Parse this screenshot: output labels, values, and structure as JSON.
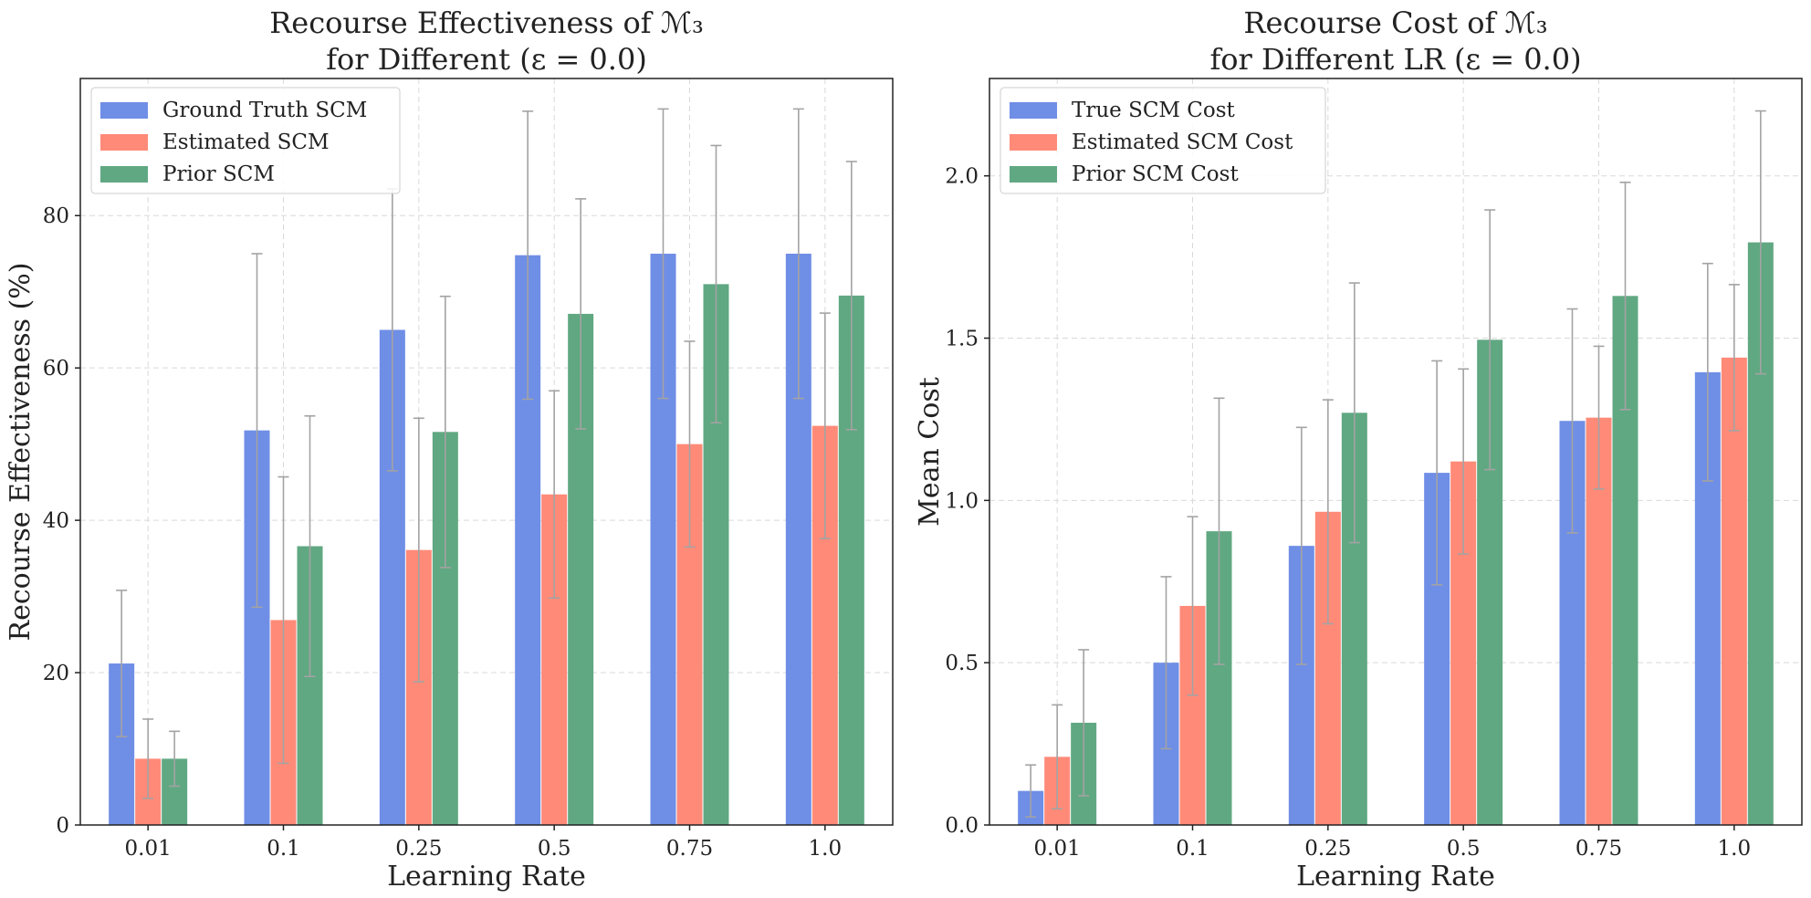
{
  "colors": {
    "blue": "#6f8ee6",
    "red": "#ff8a78",
    "green": "#60a882",
    "error_bar": "#a3a3a3",
    "grid": "#d9d9d9"
  },
  "chart_data": [
    {
      "type": "bar",
      "title_line1": "Recourse Effectiveness of ℳ₃",
      "title_line2": "for Different (ε = 0.0)",
      "xlabel": "Learning Rate",
      "ylabel": "Recourse Effectiveness (%)",
      "categories": [
        "0.01",
        "0.1",
        "0.25",
        "0.5",
        "0.75",
        "1.0"
      ],
      "ylim": [
        0,
        98
      ],
      "yticks": [
        0,
        20,
        40,
        60,
        80
      ],
      "grid": true,
      "legend_position": "top-left",
      "series": [
        {
          "name": "Ground Truth SCM",
          "color": "#6f8ee6",
          "values": [
            21.2,
            51.8,
            65.0,
            74.8,
            75.0,
            75.0
          ],
          "errors": [
            9.6,
            23.2,
            18.5,
            18.9,
            19.0,
            19.0
          ]
        },
        {
          "name": "Estimated SCM",
          "color": "#ff8a78",
          "values": [
            8.7,
            26.9,
            36.1,
            43.4,
            50.0,
            52.4
          ],
          "errors": [
            5.2,
            18.8,
            17.3,
            13.6,
            13.5,
            14.8
          ]
        },
        {
          "name": "Prior SCM",
          "color": "#60a882",
          "values": [
            8.7,
            36.6,
            51.6,
            67.1,
            71.0,
            69.5
          ],
          "errors": [
            3.6,
            17.1,
            17.8,
            15.1,
            18.2,
            17.6
          ]
        }
      ]
    },
    {
      "type": "bar",
      "title_line1": "Recourse Cost of ℳ₃",
      "title_line2": "for Different LR (ε = 0.0)",
      "xlabel": "Learning Rate",
      "ylabel": "Mean Cost",
      "categories": [
        "0.01",
        "0.1",
        "0.25",
        "0.5",
        "0.75",
        "1.0"
      ],
      "ylim": [
        0,
        2.3
      ],
      "yticks": [
        0.0,
        0.5,
        1.0,
        1.5,
        2.0
      ],
      "grid": true,
      "legend_position": "top-left",
      "series": [
        {
          "name": "True SCM Cost",
          "color": "#6f8ee6",
          "values": [
            0.105,
            0.5,
            0.86,
            1.085,
            1.245,
            1.395
          ],
          "errors": [
            0.08,
            0.265,
            0.365,
            0.345,
            0.345,
            0.335
          ]
        },
        {
          "name": "Estimated SCM Cost",
          "color": "#ff8a78",
          "values": [
            0.21,
            0.675,
            0.965,
            1.12,
            1.255,
            1.44
          ],
          "errors": [
            0.16,
            0.275,
            0.345,
            0.285,
            0.22,
            0.225
          ]
        },
        {
          "name": "Prior SCM Cost",
          "color": "#60a882",
          "values": [
            0.315,
            0.905,
            1.27,
            1.495,
            1.63,
            1.795
          ],
          "errors": [
            0.225,
            0.41,
            0.4,
            0.4,
            0.35,
            0.405
          ]
        }
      ]
    }
  ]
}
